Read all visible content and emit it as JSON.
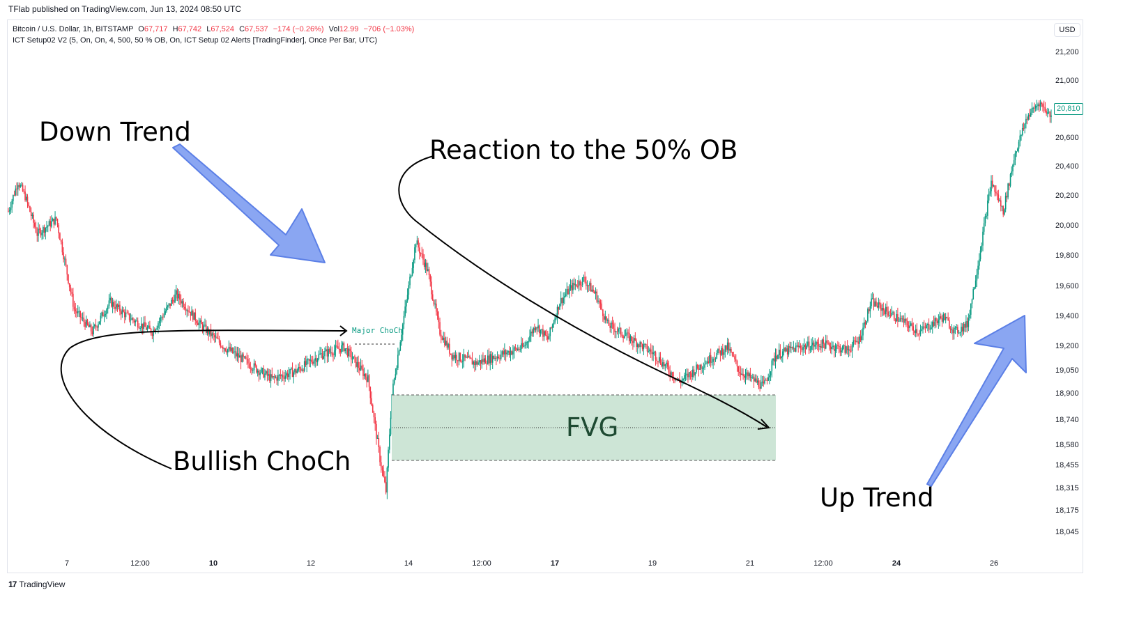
{
  "header": {
    "published": "TFlab published on TradingView.com, Jun 13, 2024 08:50 UTC"
  },
  "legend": {
    "symbol": "Bitcoin / U.S. Dollar, 1h, BITSTAMP",
    "o_label": "O",
    "o_value": "67,717",
    "h_label": "H",
    "h_value": "67,742",
    "l_label": "L",
    "l_value": "67,524",
    "c_label": "C",
    "c_value": "67,537",
    "change": "−174 (−0.26%)",
    "vol_label": "Vol",
    "vol_value": "12.99",
    "vol_change": "−706 (−1.03%)",
    "indicator": "ICT Setup02 V2 (5, On, On, 4, 500, 50 % OB, On, ICT Setup 02 Alerts [TradingFinder], Once Per Bar, UTC)"
  },
  "currency_button": "USD",
  "y_axis": {
    "ticks": [
      "21,200",
      "21,000",
      "20,800",
      "20,600",
      "20,400",
      "20,200",
      "20,000",
      "19,800",
      "19,600",
      "19,400",
      "19,200",
      "19,050",
      "18,900",
      "18,740",
      "18,580",
      "18,455",
      "18,315",
      "18,175",
      "18,045"
    ],
    "current_price": "20,810"
  },
  "x_axis": {
    "ticks": [
      {
        "label": "7",
        "bold": false
      },
      {
        "label": "12:00",
        "bold": false
      },
      {
        "label": "10",
        "bold": true
      },
      {
        "label": "12",
        "bold": false
      },
      {
        "label": "14",
        "bold": false
      },
      {
        "label": "12:00",
        "bold": false
      },
      {
        "label": "17",
        "bold": true
      },
      {
        "label": "19",
        "bold": false
      },
      {
        "label": "21",
        "bold": false
      },
      {
        "label": "12:00",
        "bold": false
      },
      {
        "label": "24",
        "bold": true
      },
      {
        "label": "26",
        "bold": false
      }
    ]
  },
  "annotations": {
    "down_trend": "Down Trend",
    "reaction": "Reaction to the 50% OB",
    "bullish_choch": "Bullish ChoCh",
    "up_trend": "Up Trend",
    "fvg": "FVG",
    "major_choch": "Major ChoCh"
  },
  "colors": {
    "bull": "#089981",
    "bear": "#f23645",
    "fvg_fill": "#cde5d6",
    "arrow_fill": "#8aa6f2",
    "arrow_stroke": "#5b7fe6"
  },
  "footer": {
    "brand": "TradingView",
    "logo": "17"
  },
  "chart_data": {
    "type": "candlestick",
    "title": "Bitcoin / U.S. Dollar, 1h, BITSTAMP",
    "ylim": [
      18000,
      21300
    ],
    "series": [
      {
        "name": "BTCUSD",
        "close_path_keypoints": [
          [
            0,
            20100
          ],
          [
            8,
            20300
          ],
          [
            14,
            20200
          ],
          [
            24,
            19950
          ],
          [
            40,
            20050
          ],
          [
            55,
            19450
          ],
          [
            70,
            19300
          ],
          [
            85,
            19500
          ],
          [
            100,
            19400
          ],
          [
            120,
            19300
          ],
          [
            140,
            19550
          ],
          [
            160,
            19350
          ],
          [
            180,
            19200
          ],
          [
            200,
            19100
          ],
          [
            220,
            19000
          ],
          [
            240,
            19050
          ],
          [
            260,
            19150
          ],
          [
            280,
            19200
          ],
          [
            300,
            19000
          ],
          [
            310,
            18500
          ],
          [
            315,
            18300
          ],
          [
            320,
            18900
          ],
          [
            330,
            19400
          ],
          [
            340,
            19900
          ],
          [
            350,
            19700
          ],
          [
            360,
            19300
          ],
          [
            370,
            19150
          ],
          [
            390,
            19100
          ],
          [
            410,
            19150
          ],
          [
            430,
            19200
          ],
          [
            440,
            19350
          ],
          [
            450,
            19250
          ],
          [
            460,
            19500
          ],
          [
            470,
            19600
          ],
          [
            480,
            19650
          ],
          [
            490,
            19550
          ],
          [
            500,
            19350
          ],
          [
            520,
            19250
          ],
          [
            540,
            19150
          ],
          [
            560,
            18980
          ],
          [
            580,
            19100
          ],
          [
            600,
            19200
          ],
          [
            610,
            19050
          ],
          [
            620,
            19000
          ],
          [
            630,
            18950
          ],
          [
            640,
            19150
          ],
          [
            660,
            19200
          ],
          [
            680,
            19220
          ],
          [
            700,
            19180
          ],
          [
            710,
            19250
          ],
          [
            720,
            19500
          ],
          [
            740,
            19400
          ],
          [
            760,
            19300
          ],
          [
            780,
            19400
          ],
          [
            790,
            19300
          ],
          [
            800,
            19350
          ],
          [
            810,
            19800
          ],
          [
            820,
            20300
          ],
          [
            830,
            20100
          ],
          [
            840,
            20500
          ],
          [
            850,
            20750
          ],
          [
            860,
            20850
          ],
          [
            870,
            20750
          ]
        ]
      }
    ]
  }
}
